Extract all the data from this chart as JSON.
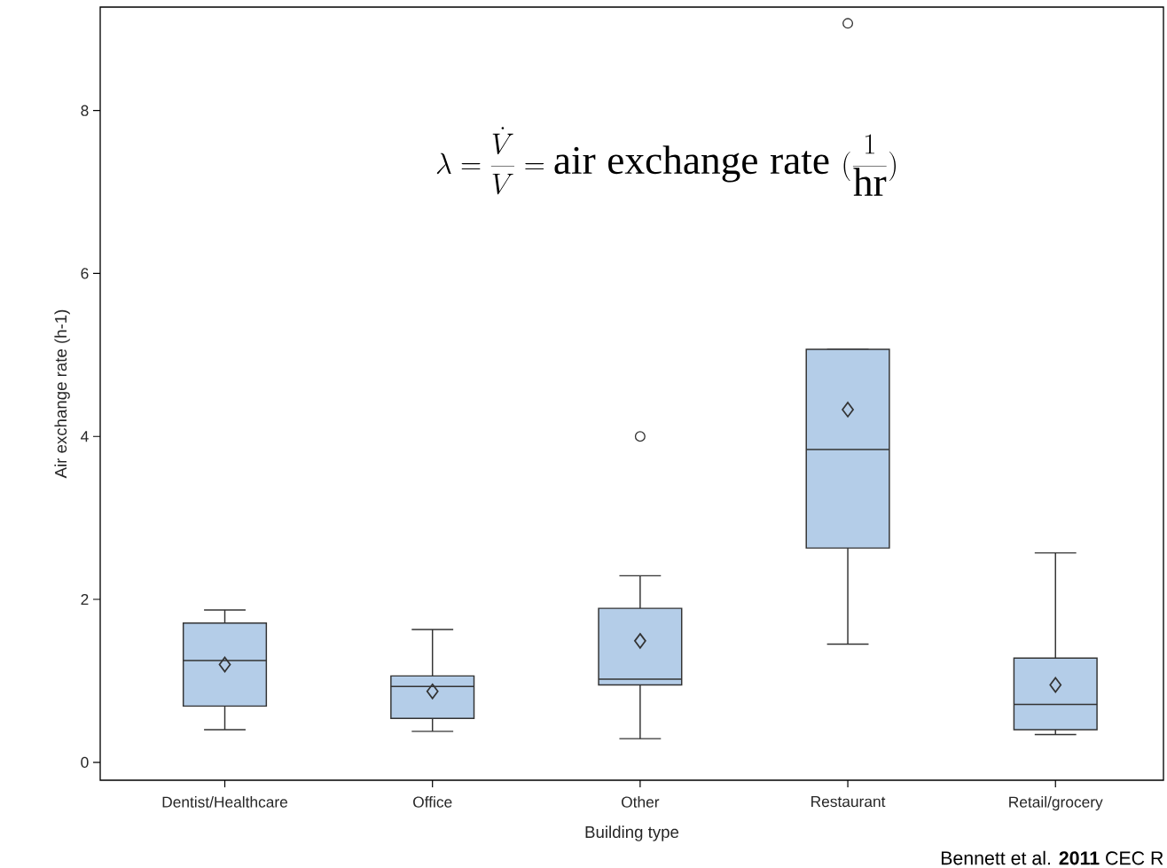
{
  "chart_data": {
    "type": "box",
    "xlabel": "Building type",
    "ylabel": "Air exchange rate (h-1)",
    "categories": [
      "Dentist/Healthcare",
      "Office",
      "Other",
      "Restaurant",
      "Retail/grocery"
    ],
    "color": "#b4cde8",
    "boxes": [
      {
        "low": 0.4,
        "q1": 0.69,
        "median": 1.25,
        "q3": 1.71,
        "high": 1.87,
        "mean": 1.2
      },
      {
        "low": 0.38,
        "q1": 0.54,
        "median": 0.93,
        "q3": 1.06,
        "high": 1.63,
        "mean": 0.87
      },
      {
        "low": 0.29,
        "q1": 0.95,
        "median": 1.02,
        "q3": 1.89,
        "high": 2.29,
        "mean": 1.49,
        "outliers": [
          4.0
        ]
      },
      {
        "low": 1.45,
        "q1": 2.63,
        "median": 3.84,
        "q3": 5.07,
        "high": 5.07,
        "mean": 4.33,
        "outliers": [
          9.07
        ]
      },
      {
        "low": 0.34,
        "q1": 0.4,
        "median": 0.71,
        "q3": 1.28,
        "high": 2.57,
        "mean": 0.95
      }
    ],
    "ylim": [
      -0.22,
      9.27
    ],
    "yticks": [
      0,
      2,
      4,
      6,
      8
    ],
    "grid": false,
    "annotations": [
      "\\lambda = \\frac{\\dot{V}}{V} = \\mathrm{air\\ exchange\\ rate}\\ (\\frac{1}{\\mathrm{hr}})",
      "Bennett et al. **2011** CEC R"
    ]
  }
}
